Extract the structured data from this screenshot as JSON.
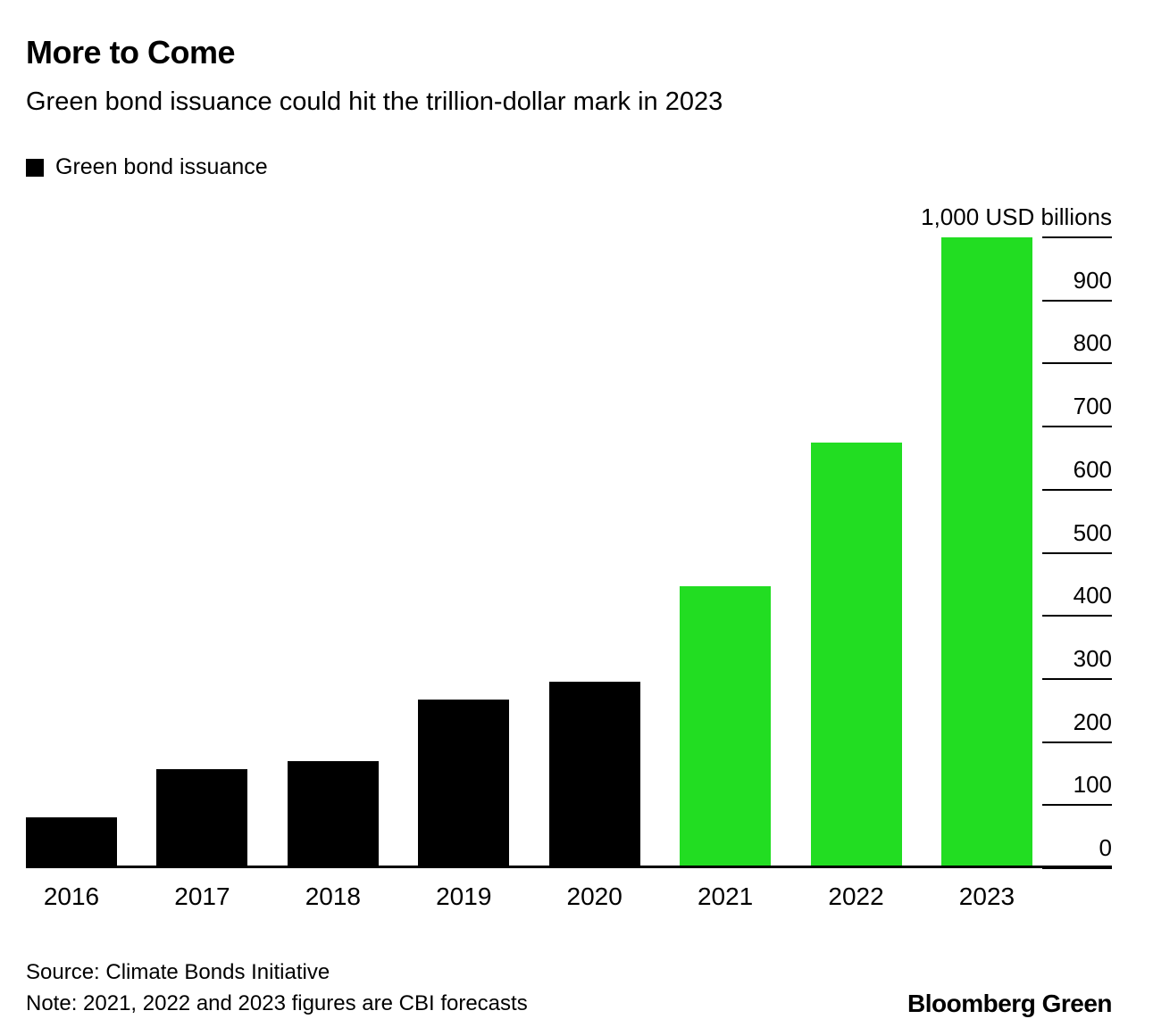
{
  "header": {
    "title": "More to Come",
    "subtitle": "Green bond issuance could hit the trillion-dollar mark in 2023"
  },
  "legend": {
    "label": "Green bond issuance",
    "swatch_color": "#000000"
  },
  "chart_data": {
    "type": "bar",
    "categories": [
      "2016",
      "2017",
      "2018",
      "2019",
      "2020",
      "2021",
      "2022",
      "2023"
    ],
    "values": [
      81,
      157,
      170,
      267,
      295,
      447,
      675,
      1000
    ],
    "bar_colors": [
      "#000000",
      "#000000",
      "#000000",
      "#000000",
      "#000000",
      "#22dd22",
      "#22dd22",
      "#22dd22"
    ],
    "title": "More to Come",
    "xlabel": "",
    "ylabel": "1,000 USD billions",
    "ylim": [
      0,
      1000
    ],
    "yticks": [
      0,
      100,
      200,
      300,
      400,
      500,
      600,
      700,
      800,
      900,
      1000
    ],
    "ytick_labels": [
      "0",
      "100",
      "200",
      "300",
      "400",
      "500",
      "600",
      "700",
      "800",
      "900",
      "1,000 USD billions"
    ],
    "legend_entries": [
      "Green bond issuance"
    ],
    "legend_position": "top-left",
    "grid": false,
    "axis_side": "right"
  },
  "footer": {
    "source": "Source: Climate Bonds Initiative",
    "note": "Note: 2021, 2022 and 2023 figures are CBI forecasts",
    "brand": "Bloomberg Green"
  }
}
